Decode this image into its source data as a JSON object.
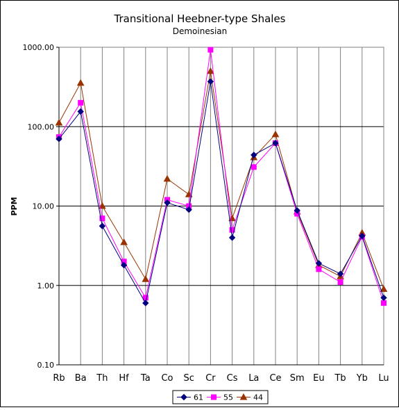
{
  "chart_data": {
    "type": "line",
    "title": "Transitional Heebner-type Shales",
    "subtitle": "Demoinesian",
    "xlabel": "",
    "ylabel": "PPM",
    "y_scale": "log",
    "ylim": [
      0.1,
      1000
    ],
    "y_ticks": [
      "1000.00",
      "100.00",
      "10.00",
      "1.00",
      "0.10"
    ],
    "grid": true,
    "legend_position": "bottom",
    "categories": [
      "Rb",
      "Ba",
      "Th",
      "Hf",
      "Ta",
      "Co",
      "Sc",
      "Cr",
      "Cs",
      "La",
      "Ce",
      "Sm",
      "Eu",
      "Tb",
      "Yb",
      "Lu"
    ],
    "series": [
      {
        "name": "61",
        "color": "#000080",
        "marker": "diamond",
        "values": [
          70,
          155,
          5.6,
          1.8,
          0.6,
          11,
          9,
          370,
          4.0,
          44,
          62,
          8.8,
          1.9,
          1.4,
          4.2,
          0.7
        ]
      },
      {
        "name": "55",
        "color": "#FF00FF",
        "marker": "square",
        "values": [
          74,
          200,
          7.0,
          2.0,
          0.7,
          12,
          10,
          930,
          5.0,
          31,
          62,
          8.0,
          1.6,
          1.1,
          4.1,
          0.6
        ]
      },
      {
        "name": "44",
        "color": "#993300",
        "marker": "triangle",
        "values": [
          112,
          355,
          10,
          3.5,
          1.2,
          22,
          14,
          500,
          7.0,
          41,
          80,
          8.5,
          1.8,
          1.3,
          4.6,
          0.9
        ]
      }
    ]
  }
}
